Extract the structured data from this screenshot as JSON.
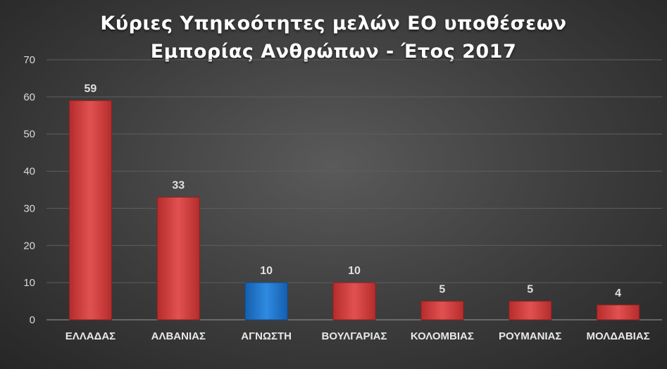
{
  "chart_data": {
    "type": "bar",
    "title_line1": "Κύριες Υπηκοότητες μελών ΕΟ υποθέσεων",
    "title_line2": "Εμπορίας Ανθρώπων - Έτος 2017",
    "categories": [
      "ΕΛΛΑΔΑΣ",
      "ΑΛΒΑΝΙΑΣ",
      "ΑΓΝΩΣΤΗ",
      "ΒΟΥΛΓΑΡΙΑΣ",
      "ΚΟΛΟΜΒΙΑΣ",
      "ΡΟΥΜΑΝΙΑΣ",
      "ΜΟΛΔΑΒΙΑΣ"
    ],
    "values": [
      59,
      33,
      10,
      10,
      5,
      5,
      4
    ],
    "bar_colors": [
      "#d94343",
      "#d94343",
      "#1f78d1",
      "#d94343",
      "#d94343",
      "#d94343",
      "#d94343"
    ],
    "ylim": [
      0,
      70
    ],
    "yticks": [
      0,
      10,
      20,
      30,
      40,
      50,
      60,
      70
    ],
    "grid": true,
    "legend": "none"
  }
}
